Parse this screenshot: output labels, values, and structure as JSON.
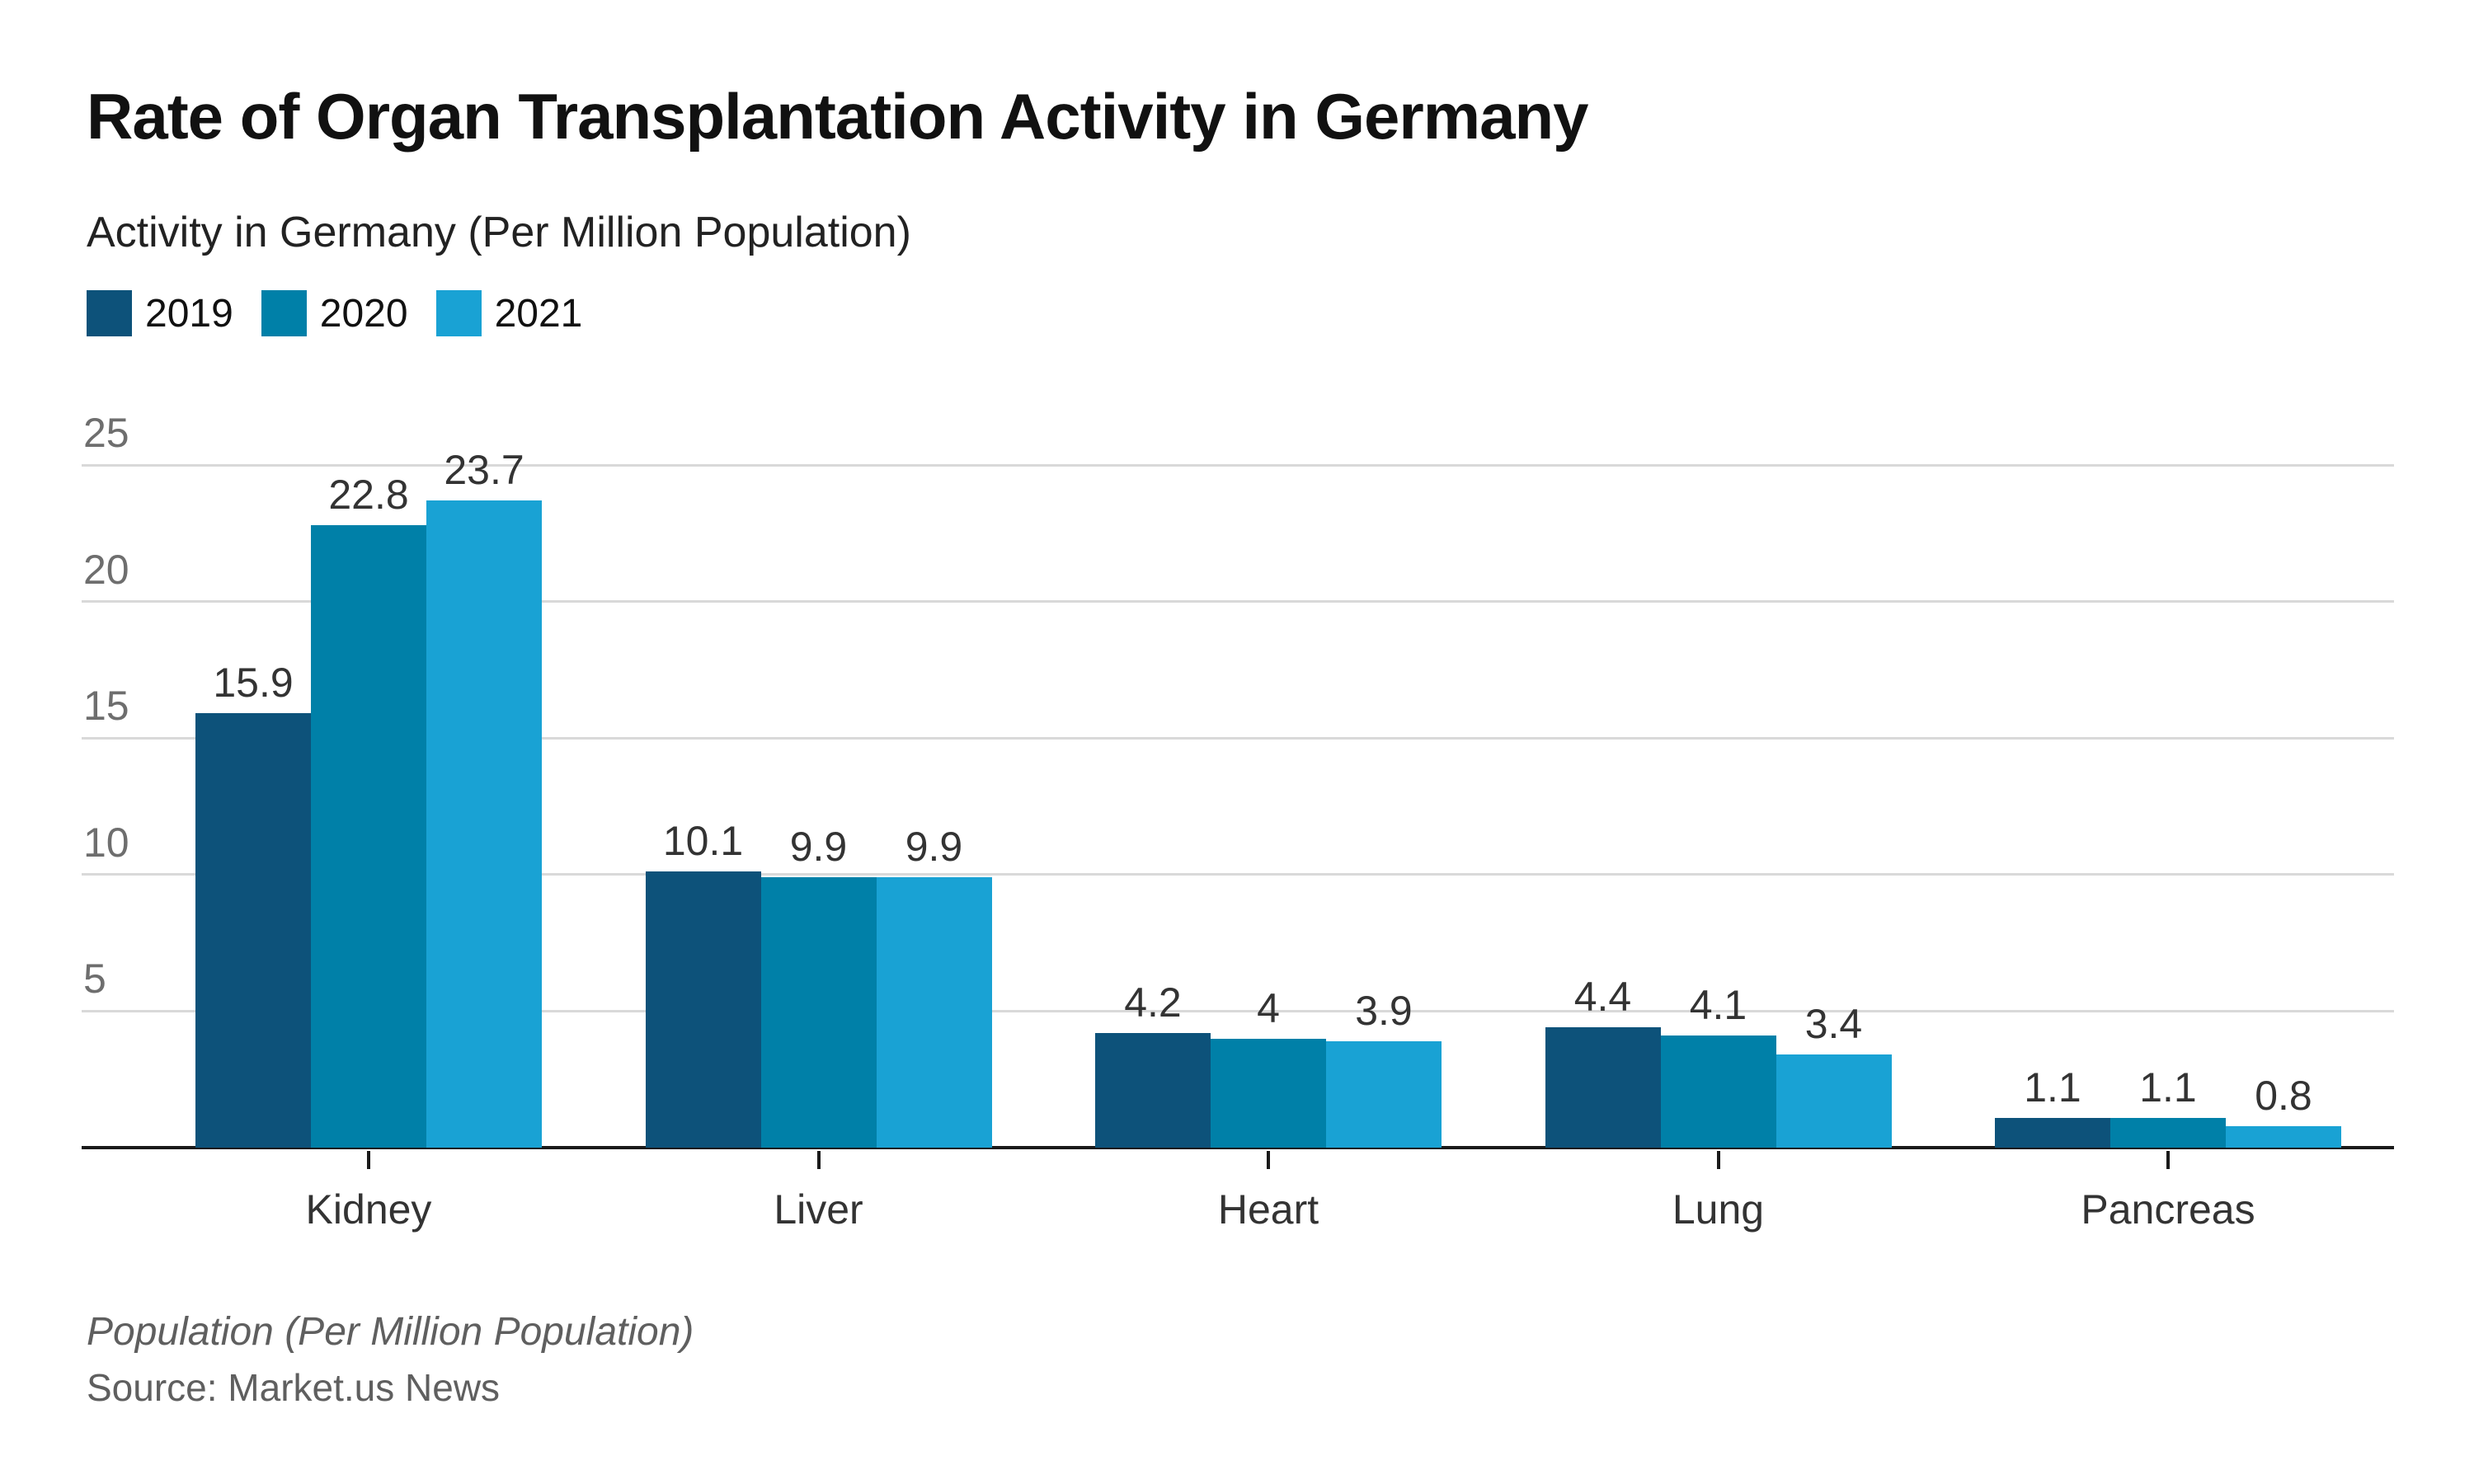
{
  "header": {
    "title": "Rate of Organ Transplantation Activity in Germany",
    "subtitle": "Activity in Germany (Per Million Population)"
  },
  "footer": {
    "note": "Population (Per Million Population)",
    "source": "Source: Market.us News"
  },
  "colors": {
    "series_2019": "#0d527a",
    "series_2020": "#0080a8",
    "series_2021": "#19a2d4",
    "gridline": "#d9d9d9",
    "axis": "#1a1a1a",
    "ytick_label": "#6e6e6e",
    "value_label": "#333333",
    "category_label": "#333333"
  },
  "chart_data": {
    "type": "bar",
    "title": "Rate of Organ Transplantation Activity in Germany",
    "subtitle": "Activity in Germany (Per Million Population)",
    "categories": [
      "Kidney",
      "Liver",
      "Heart",
      "Lung",
      "Pancreas"
    ],
    "series": [
      {
        "name": "2019",
        "color": "#0d527a",
        "values": [
          15.9,
          10.1,
          4.2,
          4.4,
          1.1
        ],
        "labels": [
          "15.9",
          "10.1",
          "4.2",
          "4.4",
          "1.1"
        ]
      },
      {
        "name": "2020",
        "color": "#0080a8",
        "values": [
          22.8,
          9.9,
          4.0,
          4.1,
          1.1
        ],
        "labels": [
          "22.8",
          "9.9",
          "4",
          "4.1",
          "1.1"
        ]
      },
      {
        "name": "2021",
        "color": "#19a2d4",
        "values": [
          23.7,
          9.9,
          3.9,
          3.4,
          0.8
        ],
        "labels": [
          "23.7",
          "9.9",
          "3.9",
          "3.4",
          "0.8"
        ]
      }
    ],
    "xlabel": "",
    "ylabel": "",
    "ylim": [
      0,
      25
    ],
    "yticks": [
      5,
      10,
      15,
      20,
      25
    ],
    "grid": "horizontal",
    "legend_position": "top-left",
    "value_labels": true,
    "footnote": "Population (Per Million Population)",
    "source": "Source: Market.us News"
  }
}
